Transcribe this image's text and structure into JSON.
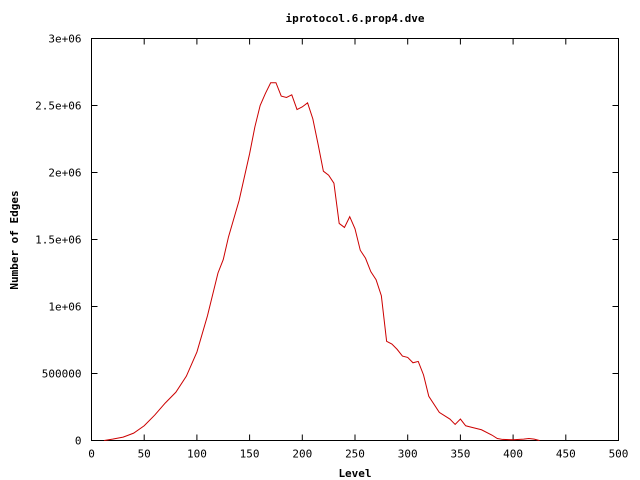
{
  "chart_data": {
    "type": "line",
    "title": "iprotocol.6.prop4.dve",
    "xlabel": "Level",
    "ylabel": "Number of Edges",
    "xlim": [
      0,
      500
    ],
    "ylim": [
      0,
      3000000
    ],
    "x_ticks": [
      0,
      50,
      100,
      150,
      200,
      250,
      300,
      350,
      400,
      450,
      500
    ],
    "x_tick_labels": [
      "0",
      "50",
      "100",
      "150",
      "200",
      "250",
      "300",
      "350",
      "400",
      "450",
      "500"
    ],
    "y_ticks": [
      0,
      500000,
      1000000,
      1500000,
      2000000,
      2500000,
      3000000
    ],
    "y_tick_labels": [
      "0",
      "500000",
      "1e+06",
      "1.5e+06",
      "2e+06",
      "2.5e+06",
      "3e+06"
    ],
    "grid": false,
    "legend": "none",
    "line_color": "#cc0000",
    "series": [
      {
        "x": [
          12,
          20,
          30,
          40,
          50,
          60,
          70,
          80,
          90,
          100,
          110,
          120,
          125,
          130,
          140,
          150,
          155,
          160,
          165,
          170,
          175,
          180,
          185,
          190,
          195,
          200,
          205,
          210,
          215,
          220,
          225,
          230,
          235,
          240,
          245,
          250,
          255,
          260,
          265,
          270,
          275,
          280,
          285,
          290,
          295,
          300,
          305,
          310,
          315,
          320,
          330,
          340,
          345,
          350,
          355,
          360,
          370,
          380,
          385,
          390,
          400,
          410,
          415,
          420,
          425
        ],
        "y": [
          0,
          10000,
          25000,
          55000,
          110000,
          190000,
          280000,
          360000,
          480000,
          660000,
          930000,
          1250000,
          1350000,
          1520000,
          1790000,
          2140000,
          2340000,
          2500000,
          2590000,
          2670000,
          2670000,
          2570000,
          2560000,
          2580000,
          2470000,
          2490000,
          2520000,
          2400000,
          2210000,
          2010000,
          1980000,
          1920000,
          1620000,
          1590000,
          1670000,
          1580000,
          1420000,
          1360000,
          1260000,
          1200000,
          1080000,
          740000,
          720000,
          680000,
          630000,
          620000,
          580000,
          590000,
          490000,
          330000,
          210000,
          160000,
          120000,
          160000,
          110000,
          100000,
          80000,
          40000,
          15000,
          8000,
          6000,
          10000,
          15000,
          10000,
          0
        ]
      }
    ]
  }
}
